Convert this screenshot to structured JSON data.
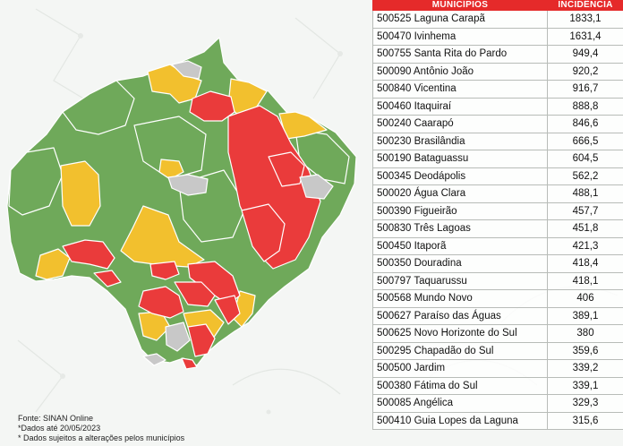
{
  "table": {
    "headers": [
      "MUNICÍPIOS",
      "INCIDÊNCIA"
    ],
    "rows": [
      {
        "municipio": "500525 Laguna Carapã",
        "incidencia": "1833,1"
      },
      {
        "municipio": "500470 Ivinhema",
        "incidencia": "1631,4"
      },
      {
        "municipio": "500755 Santa Rita do Pardo",
        "incidencia": "949,4"
      },
      {
        "municipio": "500090 Antônio João",
        "incidencia": "920,2"
      },
      {
        "municipio": "500840 Vicentina",
        "incidencia": "916,7"
      },
      {
        "municipio": "500460 Itaquiraí",
        "incidencia": "888,8"
      },
      {
        "municipio": "500240 Caarapó",
        "incidencia": "846,6"
      },
      {
        "municipio": "500230 Brasilândia",
        "incidencia": "666,5"
      },
      {
        "municipio": "500190 Bataguassu",
        "incidencia": "604,5"
      },
      {
        "municipio": "500345 Deodápolis",
        "incidencia": "562,2"
      },
      {
        "municipio": "500020 Água Clara",
        "incidencia": "488,1"
      },
      {
        "municipio": "500390 Figueirão",
        "incidencia": "457,7"
      },
      {
        "municipio": "500830 Três Lagoas",
        "incidencia": "451,8"
      },
      {
        "municipio": "500450 Itaporã",
        "incidencia": "421,3"
      },
      {
        "municipio": "500350 Douradina",
        "incidencia": "418,4"
      },
      {
        "municipio": "500797 Taquarussu",
        "incidencia": "418,1"
      },
      {
        "municipio": "500568 Mundo Novo",
        "incidencia": "406"
      },
      {
        "municipio": "500627 Paraíso das Águas",
        "incidencia": "389,1"
      },
      {
        "municipio": "500625 Novo Horizonte do Sul",
        "incidencia": "380"
      },
      {
        "municipio": "500295 Chapadão do Sul",
        "incidencia": "359,6"
      },
      {
        "municipio": "500500 Jardim",
        "incidencia": "339,2"
      },
      {
        "municipio": "500380 Fátima do Sul",
        "incidencia": "339,1"
      },
      {
        "municipio": "500085 Angélica",
        "incidencia": "329,3"
      },
      {
        "municipio": "500410 Guia Lopes da Laguna",
        "incidencia": "315,6"
      }
    ]
  },
  "footnotes": {
    "source": "Fonte: SINAN Online",
    "date": "*Dados até 20/05/2023",
    "disclaimer": "* Dados sujeitos a alterações pelos municípios"
  },
  "map": {
    "colors": {
      "green": "#6fa95a",
      "yellow": "#f2c02e",
      "red": "#ea3b3b",
      "gray": "#c8c8c8",
      "border": "#ffffff"
    }
  }
}
